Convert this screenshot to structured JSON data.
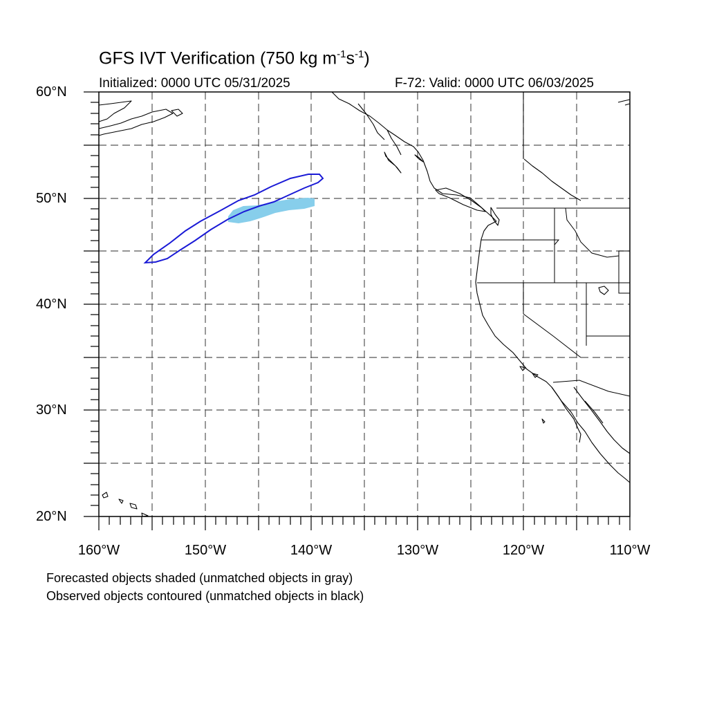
{
  "title": {
    "main": "GFS IVT Verification (750 kg m",
    "sup1": "-1",
    "mid": "s",
    "sup2": "-1",
    "end": ")"
  },
  "initialized_text": "Initialized: 0000 UTC 05/31/2025",
  "valid_text": "F-72: Valid: 0000 UTC 06/03/2025",
  "lat_labels": [
    "60°N",
    "50°N",
    "40°N",
    "30°N",
    "20°N"
  ],
  "lon_labels": [
    "160°W",
    "150°W",
    "140°W",
    "130°W",
    "120°W",
    "110°W"
  ],
  "legend_notes": [
    "Forecasted objects shaded (unmatched objects in gray)",
    "Observed objects contoured (unmatched objects in black)"
  ],
  "map": {
    "lon_range": [
      -160,
      -110
    ],
    "lat_range": [
      20,
      60
    ],
    "grid_step_deg": 5,
    "grid_style": "dashed",
    "forecast_object_color": "#87CEEB",
    "observed_contour_color": "#1a1ad6",
    "coastline_color": "#000000"
  }
}
